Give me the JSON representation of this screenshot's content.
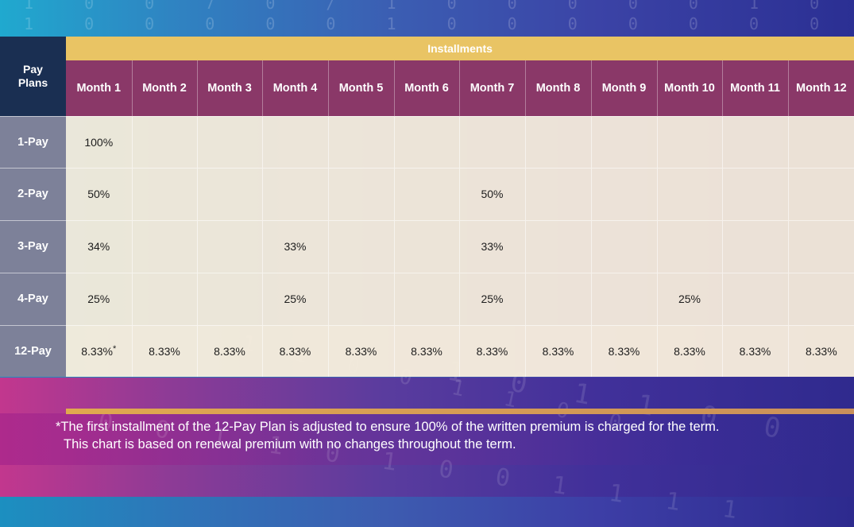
{
  "table": {
    "corner_label": "Pay Plans",
    "installments_label": "Installments",
    "months": [
      "Month 1",
      "Month 2",
      "Month 3",
      "Month 4",
      "Month 5",
      "Month 6",
      "Month 7",
      "Month 8",
      "Month 9",
      "Month 10",
      "Month 11",
      "Month 12"
    ],
    "rows": [
      {
        "label": "1-Pay",
        "cells": [
          "100%",
          "",
          "",
          "",
          "",
          "",
          "",
          "",
          "",
          "",
          "",
          ""
        ]
      },
      {
        "label": "2-Pay",
        "cells": [
          "50%",
          "",
          "",
          "",
          "",
          "",
          "50%",
          "",
          "",
          "",
          "",
          ""
        ]
      },
      {
        "label": "3-Pay",
        "cells": [
          "34%",
          "",
          "",
          "33%",
          "",
          "",
          "33%",
          "",
          "",
          "",
          "",
          ""
        ]
      },
      {
        "label": "4-Pay",
        "cells": [
          "25%",
          "",
          "",
          "25%",
          "",
          "",
          "25%",
          "",
          "",
          "25%",
          "",
          ""
        ]
      },
      {
        "label": "12-Pay",
        "cells": [
          "8.33%",
          "8.33%",
          "8.33%",
          "8.33%",
          "8.33%",
          "8.33%",
          "8.33%",
          "8.33%",
          "8.33%",
          "8.33%",
          "8.33%",
          "8.33%"
        ]
      }
    ],
    "first_cell_marker": "*"
  },
  "footnote": {
    "line1": "*The first installment of the 12-Pay Plan is adjusted to ensure 100% of the written premium is charged for the term.",
    "line2": "This chart is based on renewal premium with no changes throughout the term."
  },
  "colors": {
    "header_navy": "#1a2f52",
    "installments_gold": "#e9c464",
    "month_plum": "#8a3868",
    "row_label_gray": "#7d8199",
    "cell_cream": "#faefdc"
  }
}
